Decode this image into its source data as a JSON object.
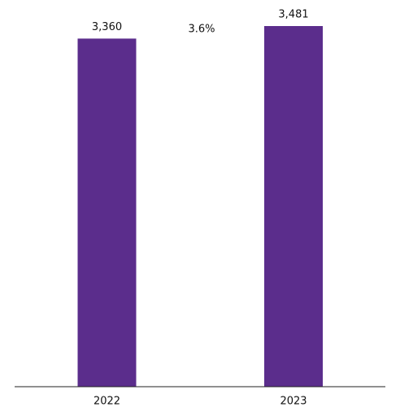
{
  "chart_data": {
    "type": "bar",
    "categories": [
      "2022",
      "2023"
    ],
    "values": [
      3360,
      3481
    ],
    "value_labels": [
      "3,360",
      "3,481"
    ],
    "color": "#5b2d8c",
    "annotations": [
      "3.6%"
    ]
  }
}
